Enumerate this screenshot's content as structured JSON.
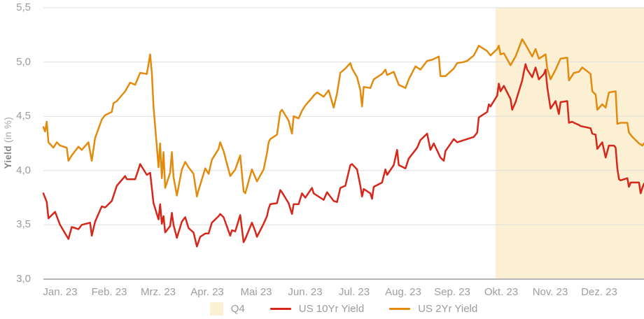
{
  "chart_data": {
    "type": "line",
    "title": "",
    "ylabel_bold": "Yield",
    "ylabel_unit": " (in %)",
    "y_axis": {
      "min": 3.0,
      "max": 5.5,
      "grid": true,
      "ticks": [
        {
          "value": 5.5,
          "label": "5,5"
        },
        {
          "value": 5.0,
          "label": "5,0"
        },
        {
          "value": 4.5,
          "label": "4,5"
        },
        {
          "value": 4.0,
          "label": "4,0"
        },
        {
          "value": 3.5,
          "label": "3,5"
        },
        {
          "value": 3.0,
          "label": "3,0"
        }
      ]
    },
    "x_axis": {
      "unit": "day_of_year_2023",
      "min": 3,
      "max": 363,
      "tick_labels": [
        "Jan. 23",
        "Feb. 23",
        "Mrz. 23",
        "Apr. 23",
        "Mai 23",
        "Jun. 23",
        "Jul. 23",
        "Aug. 23",
        "Sep. 23",
        "Okt. 23",
        "Nov. 23",
        "Dez. 23"
      ]
    },
    "highlight": {
      "label": "Q4",
      "from_doy": 274,
      "to_doy": 363,
      "color": "#fbefd4"
    },
    "legend_position": "bottom",
    "style": {
      "gridline_color": "#dedede",
      "axis_color": "#b4b4b4",
      "tick_text_color": "#9b9b9b",
      "background": "#ffffff",
      "line_width": 2.5
    },
    "series": [
      {
        "name": "US 10Yr Yield",
        "color": "#d6271a",
        "points": [
          [
            3,
            3.79
          ],
          [
            5,
            3.71
          ],
          [
            6,
            3.56
          ],
          [
            10,
            3.62
          ],
          [
            13,
            3.5
          ],
          [
            18,
            3.37
          ],
          [
            20,
            3.48
          ],
          [
            24,
            3.46
          ],
          [
            26,
            3.5
          ],
          [
            31,
            3.52
          ],
          [
            32,
            3.4
          ],
          [
            34,
            3.53
          ],
          [
            38,
            3.67
          ],
          [
            40,
            3.66
          ],
          [
            44,
            3.72
          ],
          [
            47,
            3.86
          ],
          [
            52,
            3.95
          ],
          [
            53,
            3.92
          ],
          [
            58,
            3.92
          ],
          [
            60,
            4.01
          ],
          [
            61,
            4.06
          ],
          [
            65,
            3.96
          ],
          [
            67,
            3.98
          ],
          [
            69,
            3.7
          ],
          [
            72,
            3.55
          ],
          [
            73,
            3.69
          ],
          [
            74,
            3.51
          ],
          [
            75,
            3.58
          ],
          [
            76,
            3.43
          ],
          [
            79,
            3.49
          ],
          [
            80,
            3.61
          ],
          [
            81,
            3.5
          ],
          [
            83,
            3.38
          ],
          [
            86,
            3.53
          ],
          [
            88,
            3.57
          ],
          [
            90,
            3.47
          ],
          [
            93,
            3.43
          ],
          [
            95,
            3.3
          ],
          [
            97,
            3.39
          ],
          [
            100,
            3.42
          ],
          [
            102,
            3.42
          ],
          [
            104,
            3.52
          ],
          [
            108,
            3.58
          ],
          [
            109,
            3.6
          ],
          [
            111,
            3.57
          ],
          [
            115,
            3.4
          ],
          [
            116,
            3.45
          ],
          [
            118,
            3.44
          ],
          [
            121,
            3.59
          ],
          [
            123,
            3.34
          ],
          [
            124,
            3.37
          ],
          [
            128,
            3.52
          ],
          [
            130,
            3.44
          ],
          [
            131,
            3.39
          ],
          [
            135,
            3.51
          ],
          [
            137,
            3.58
          ],
          [
            138,
            3.65
          ],
          [
            139,
            3.69
          ],
          [
            143,
            3.7
          ],
          [
            145,
            3.82
          ],
          [
            146,
            3.8
          ],
          [
            150,
            3.7
          ],
          [
            152,
            3.6
          ],
          [
            153,
            3.69
          ],
          [
            156,
            3.69
          ],
          [
            158,
            3.79
          ],
          [
            160,
            3.75
          ],
          [
            164,
            3.84
          ],
          [
            165,
            3.79
          ],
          [
            167,
            3.77
          ],
          [
            171,
            3.73
          ],
          [
            173,
            3.8
          ],
          [
            177,
            3.72
          ],
          [
            179,
            3.71
          ],
          [
            181,
            3.84
          ],
          [
            184,
            3.86
          ],
          [
            187,
            4.05
          ],
          [
            188,
            4.06
          ],
          [
            191,
            4.01
          ],
          [
            193,
            3.86
          ],
          [
            194,
            3.76
          ],
          [
            195,
            3.83
          ],
          [
            199,
            3.79
          ],
          [
            200,
            3.74
          ],
          [
            201,
            3.85
          ],
          [
            206,
            3.89
          ],
          [
            208,
            4.01
          ],
          [
            209,
            3.96
          ],
          [
            213,
            4.05
          ],
          [
            215,
            4.19
          ],
          [
            216,
            4.05
          ],
          [
            220,
            4.02
          ],
          [
            222,
            4.11
          ],
          [
            226,
            4.19
          ],
          [
            227,
            4.21
          ],
          [
            229,
            4.28
          ],
          [
            233,
            4.34
          ],
          [
            235,
            4.19
          ],
          [
            237,
            4.25
          ],
          [
            241,
            4.12
          ],
          [
            243,
            4.09
          ],
          [
            244,
            4.18
          ],
          [
            249,
            4.29
          ],
          [
            251,
            4.26
          ],
          [
            255,
            4.28
          ],
          [
            257,
            4.29
          ],
          [
            261,
            4.31
          ],
          [
            263,
            4.35
          ],
          [
            264,
            4.49
          ],
          [
            269,
            4.54
          ],
          [
            270,
            4.61
          ],
          [
            271,
            4.59
          ],
          [
            275,
            4.69
          ],
          [
            276,
            4.8
          ],
          [
            277,
            4.73
          ],
          [
            279,
            4.78
          ],
          [
            283,
            4.66
          ],
          [
            284,
            4.56
          ],
          [
            286,
            4.63
          ],
          [
            290,
            4.83
          ],
          [
            291,
            4.91
          ],
          [
            292,
            4.98
          ],
          [
            293,
            4.93
          ],
          [
            296,
            4.86
          ],
          [
            298,
            4.95
          ],
          [
            300,
            4.84
          ],
          [
            303,
            4.89
          ],
          [
            304,
            4.93
          ],
          [
            305,
            4.77
          ],
          [
            307,
            4.57
          ],
          [
            310,
            4.64
          ],
          [
            312,
            4.52
          ],
          [
            313,
            4.63
          ],
          [
            317,
            4.64
          ],
          [
            318,
            4.44
          ],
          [
            320,
            4.45
          ],
          [
            321,
            4.44
          ],
          [
            324,
            4.42
          ],
          [
            325,
            4.41
          ],
          [
            331,
            4.39
          ],
          [
            332,
            4.34
          ],
          [
            334,
            4.33
          ],
          [
            335,
            4.2
          ],
          [
            338,
            4.26
          ],
          [
            340,
            4.12
          ],
          [
            342,
            4.23
          ],
          [
            345,
            4.23
          ],
          [
            346,
            4.21
          ],
          [
            347,
            4.02
          ],
          [
            348,
            3.92
          ],
          [
            349,
            3.91
          ],
          [
            353,
            3.93
          ],
          [
            354,
            3.85
          ],
          [
            355,
            3.89
          ],
          [
            360,
            3.89
          ],
          [
            361,
            3.79
          ],
          [
            362,
            3.84
          ],
          [
            363,
            3.88
          ]
        ]
      },
      {
        "name": "US 2Yr Yield",
        "color": "#e28b0d",
        "points": [
          [
            3,
            4.4
          ],
          [
            4,
            4.36
          ],
          [
            5,
            4.45
          ],
          [
            6,
            4.26
          ],
          [
            9,
            4.21
          ],
          [
            11,
            4.26
          ],
          [
            13,
            4.23
          ],
          [
            17,
            4.21
          ],
          [
            18,
            4.09
          ],
          [
            20,
            4.14
          ],
          [
            24,
            4.22
          ],
          [
            26,
            4.19
          ],
          [
            30,
            4.26
          ],
          [
            32,
            4.09
          ],
          [
            34,
            4.3
          ],
          [
            38,
            4.47
          ],
          [
            40,
            4.51
          ],
          [
            44,
            4.54
          ],
          [
            45,
            4.62
          ],
          [
            47,
            4.64
          ],
          [
            52,
            4.73
          ],
          [
            55,
            4.81
          ],
          [
            58,
            4.79
          ],
          [
            61,
            4.9
          ],
          [
            65,
            4.89
          ],
          [
            67,
            5.07
          ],
          [
            68,
            4.9
          ],
          [
            69,
            4.59
          ],
          [
            72,
            4.03
          ],
          [
            73,
            4.25
          ],
          [
            74,
            3.93
          ],
          [
            75,
            4.17
          ],
          [
            76,
            3.84
          ],
          [
            79,
            3.98
          ],
          [
            80,
            4.17
          ],
          [
            81,
            3.94
          ],
          [
            83,
            3.77
          ],
          [
            86,
            4.01
          ],
          [
            88,
            4.08
          ],
          [
            90,
            4.03
          ],
          [
            93,
            3.97
          ],
          [
            95,
            3.76
          ],
          [
            96,
            3.82
          ],
          [
            100,
            4.02
          ],
          [
            102,
            3.97
          ],
          [
            104,
            4.1
          ],
          [
            108,
            4.2
          ],
          [
            109,
            4.26
          ],
          [
            111,
            4.18
          ],
          [
            115,
            3.95
          ],
          [
            118,
            4.01
          ],
          [
            121,
            4.14
          ],
          [
            123,
            3.81
          ],
          [
            124,
            3.79
          ],
          [
            128,
            4.01
          ],
          [
            131,
            3.9
          ],
          [
            135,
            4.01
          ],
          [
            137,
            4.16
          ],
          [
            138,
            4.26
          ],
          [
            139,
            4.29
          ],
          [
            143,
            4.33
          ],
          [
            145,
            4.54
          ],
          [
            146,
            4.56
          ],
          [
            150,
            4.46
          ],
          [
            152,
            4.34
          ],
          [
            153,
            4.5
          ],
          [
            156,
            4.48
          ],
          [
            158,
            4.55
          ],
          [
            160,
            4.6
          ],
          [
            164,
            4.67
          ],
          [
            165,
            4.69
          ],
          [
            167,
            4.72
          ],
          [
            171,
            4.68
          ],
          [
            174,
            4.74
          ],
          [
            177,
            4.58
          ],
          [
            179,
            4.71
          ],
          [
            181,
            4.9
          ],
          [
            184,
            4.94
          ],
          [
            187,
            4.99
          ],
          [
            188,
            4.94
          ],
          [
            191,
            4.86
          ],
          [
            193,
            4.74
          ],
          [
            194,
            4.59
          ],
          [
            195,
            4.77
          ],
          [
            199,
            4.76
          ],
          [
            201,
            4.84
          ],
          [
            206,
            4.89
          ],
          [
            208,
            4.93
          ],
          [
            209,
            4.88
          ],
          [
            213,
            4.91
          ],
          [
            216,
            4.79
          ],
          [
            220,
            4.76
          ],
          [
            222,
            4.84
          ],
          [
            226,
            4.96
          ],
          [
            229,
            4.93
          ],
          [
            233,
            5.01
          ],
          [
            236,
            5.02
          ],
          [
            240,
            5.05
          ],
          [
            241,
            4.87
          ],
          [
            244,
            4.87
          ],
          [
            249,
            4.94
          ],
          [
            251,
            4.99
          ],
          [
            255,
            5.0
          ],
          [
            257,
            5.01
          ],
          [
            261,
            5.06
          ],
          [
            263,
            5.12
          ],
          [
            264,
            5.15
          ],
          [
            269,
            5.1
          ],
          [
            271,
            5.06
          ],
          [
            275,
            5.12
          ],
          [
            276,
            5.15
          ],
          [
            277,
            5.07
          ],
          [
            279,
            5.08
          ],
          [
            283,
            4.97
          ],
          [
            286,
            5.05
          ],
          [
            290,
            5.21
          ],
          [
            292,
            5.16
          ],
          [
            296,
            5.05
          ],
          [
            298,
            5.12
          ],
          [
            300,
            5.03
          ],
          [
            304,
            5.07
          ],
          [
            305,
            4.94
          ],
          [
            307,
            4.84
          ],
          [
            310,
            4.93
          ],
          [
            313,
            5.03
          ],
          [
            317,
            5.04
          ],
          [
            318,
            4.83
          ],
          [
            321,
            4.9
          ],
          [
            324,
            4.91
          ],
          [
            326,
            4.95
          ],
          [
            331,
            4.89
          ],
          [
            332,
            4.73
          ],
          [
            334,
            4.7
          ],
          [
            335,
            4.56
          ],
          [
            338,
            4.61
          ],
          [
            340,
            4.58
          ],
          [
            342,
            4.72
          ],
          [
            346,
            4.73
          ],
          [
            347,
            4.43
          ],
          [
            349,
            4.44
          ],
          [
            353,
            4.44
          ],
          [
            354,
            4.35
          ],
          [
            356,
            4.31
          ],
          [
            360,
            4.25
          ],
          [
            362,
            4.23
          ],
          [
            363,
            4.25
          ]
        ]
      }
    ]
  }
}
